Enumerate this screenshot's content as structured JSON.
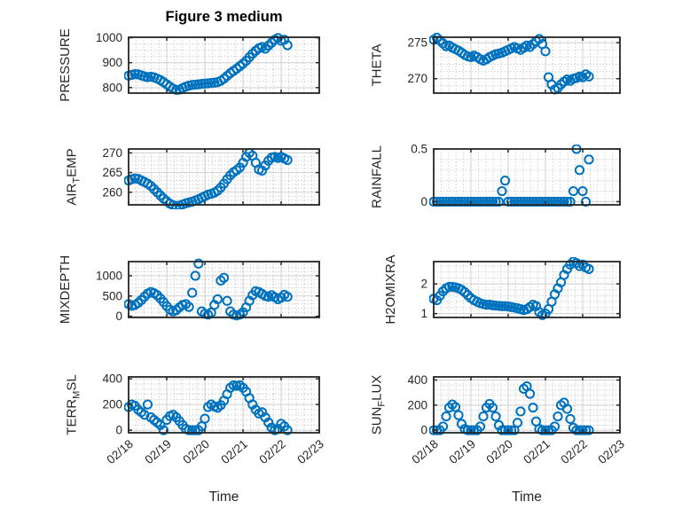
{
  "figure": {
    "title": "Figure 3 medium",
    "xlabel": "Time"
  },
  "colors": {
    "marker": "#0072BD",
    "axis": "#262626",
    "grid_major": "#cfcfcf",
    "grid_minor": "#bdbdbd",
    "background": "#ffffff",
    "title": "#000000"
  },
  "axes_meta": {
    "t_step_days": 0.0833333,
    "x_minor_step_days": 0.2,
    "xlim_days": [
      0,
      5
    ],
    "x_tick_labels": [
      "02/18",
      "02/19",
      "02/20",
      "02/21",
      "02/22",
      "02/23"
    ],
    "marker": "open-circle"
  },
  "chart_data": [
    {
      "id": "pressure",
      "name": "PRESSURE",
      "type": "scatter",
      "ylabel_parts": [
        {
          "text": "PRESSURE"
        }
      ],
      "yticks": [
        800,
        900,
        1000
      ],
      "ylim": [
        778,
        1002
      ],
      "ytick_minor_step": 25,
      "values": [
        848,
        851,
        854,
        853,
        849,
        845,
        842,
        844,
        841,
        836,
        830,
        822,
        813,
        804,
        796,
        791,
        792,
        798,
        804,
        808,
        811,
        812,
        813,
        815,
        816,
        817,
        819,
        820,
        822,
        827,
        836,
        847,
        858,
        867,
        876,
        886,
        896,
        908,
        922,
        936,
        948,
        958,
        963,
        956,
        968,
        980,
        992,
        999,
        988,
        992,
        970
      ]
    },
    {
      "id": "air-temp",
      "name": "AIR_TEMP",
      "type": "scatter",
      "ylabel_parts": [
        {
          "text": "AIR"
        },
        {
          "text": "T",
          "sub": true
        },
        {
          "text": "EMP"
        }
      ],
      "yticks": [
        260,
        265,
        270
      ],
      "ylim": [
        256.8,
        271
      ],
      "ytick_minor_step": 1,
      "values": [
        263.0,
        263.3,
        263.5,
        263.4,
        263.0,
        262.6,
        262.2,
        261.6,
        260.8,
        260.0,
        259.2,
        258.4,
        257.7,
        257.1,
        256.7,
        256.5,
        256.6,
        256.9,
        257.2,
        257.4,
        257.6,
        257.9,
        258.2,
        258.6,
        259.0,
        259.4,
        259.6,
        259.9,
        260.4,
        261.2,
        262.2,
        263.3,
        264.3,
        265.1,
        265.6,
        266.3,
        267.5,
        269.0,
        270.0,
        269.3,
        267.5,
        265.8,
        265.5,
        266.8,
        268.0,
        268.8,
        269.0,
        268.7,
        269.0,
        268.6,
        268.2
      ]
    },
    {
      "id": "mixdepth",
      "name": "MIXDEPTH",
      "type": "scatter",
      "ylabel_parts": [
        {
          "text": "MIXDEPTH"
        }
      ],
      "yticks": [
        0,
        500,
        1000
      ],
      "ylim": [
        -30,
        1350
      ],
      "ytick_minor_step": 100,
      "values": [
        300,
        260,
        280,
        330,
        400,
        480,
        560,
        600,
        570,
        520,
        440,
        350,
        250,
        160,
        120,
        150,
        220,
        280,
        300,
        230,
        580,
        1000,
        1300,
        120,
        60,
        40,
        90,
        280,
        420,
        880,
        950,
        380,
        120,
        40,
        20,
        40,
        100,
        220,
        380,
        520,
        620,
        600,
        550,
        500,
        480,
        520,
        470,
        420,
        460,
        530,
        480
      ]
    },
    {
      "id": "terr-msl",
      "name": "TERR_MSL",
      "type": "scatter",
      "ylabel_parts": [
        {
          "text": "TERR"
        },
        {
          "text": "M",
          "sub": true
        },
        {
          "text": "SL"
        }
      ],
      "yticks": [
        0,
        200,
        400
      ],
      "ylim": [
        -20,
        415
      ],
      "ytick_minor_step": 40,
      "values": [
        180,
        200,
        190,
        160,
        140,
        120,
        200,
        100,
        80,
        60,
        40,
        0,
        80,
        110,
        120,
        100,
        70,
        40,
        10,
        0,
        0,
        0,
        0,
        30,
        90,
        180,
        200,
        185,
        175,
        195,
        230,
        280,
        330,
        350,
        345,
        350,
        330,
        300,
        250,
        200,
        160,
        130,
        140,
        100,
        60,
        20,
        0,
        10,
        50,
        30,
        0
      ]
    },
    {
      "id": "theta",
      "name": "THETA",
      "type": "scatter",
      "ylabel_parts": [
        {
          "text": "THETA"
        }
      ],
      "yticks": [
        270,
        275
      ],
      "ylim": [
        268,
        275.75
      ],
      "ytick_minor_step": 1,
      "values": [
        275.4,
        275.7,
        275.3,
        274.9,
        274.5,
        274.6,
        274.3,
        274.1,
        273.9,
        273.6,
        273.3,
        273.1,
        273.0,
        273.2,
        273.0,
        272.7,
        272.5,
        272.7,
        273.0,
        273.2,
        273.4,
        273.5,
        273.6,
        273.8,
        274.0,
        274.2,
        274.4,
        274.2,
        274.0,
        274.3,
        274.6,
        274.4,
        274.8,
        275.2,
        275.5,
        274.8,
        273.8,
        270.2,
        269.2,
        268.5,
        268.7,
        269.2,
        269.6,
        269.9,
        269.7,
        270.0,
        270.1,
        270.3,
        270.2,
        270.6,
        270.3
      ]
    },
    {
      "id": "rainfall",
      "name": "RAINFALL",
      "type": "scatter",
      "ylabel_parts": [
        {
          "text": "RAINFALL"
        }
      ],
      "yticks": [
        0,
        0.5
      ],
      "ylim": [
        -0.03,
        0.5
      ],
      "ytick_minor_step": 0.1,
      "values": [
        0,
        0,
        0,
        0,
        0,
        0,
        0,
        0,
        0,
        0,
        0,
        0,
        0,
        0,
        0,
        0,
        0,
        0,
        0,
        0,
        0,
        0,
        0.1,
        0.2,
        0,
        0,
        0,
        0,
        0,
        0,
        0,
        0,
        0,
        0,
        0,
        0,
        0,
        0,
        0,
        0,
        0,
        0,
        0,
        0,
        0,
        0.1,
        0.5,
        0.3,
        0.1,
        0,
        0.4
      ]
    },
    {
      "id": "h2omixra",
      "name": "H2OMIXRA",
      "type": "scatter",
      "ylabel_parts": [
        {
          "text": "H2OMIXRA"
        }
      ],
      "yticks": [
        1,
        2
      ],
      "ylim": [
        0.87,
        2.75
      ],
      "ytick_minor_step": 0.2,
      "values": [
        1.5,
        1.45,
        1.6,
        1.75,
        1.85,
        1.9,
        1.9,
        1.88,
        1.85,
        1.8,
        1.72,
        1.62,
        1.52,
        1.45,
        1.4,
        1.35,
        1.32,
        1.3,
        1.3,
        1.28,
        1.27,
        1.26,
        1.25,
        1.25,
        1.24,
        1.22,
        1.2,
        1.18,
        1.15,
        1.12,
        1.15,
        1.22,
        1.3,
        1.25,
        1.05,
        0.95,
        1.0,
        1.15,
        1.4,
        1.65,
        1.85,
        2.05,
        2.3,
        2.5,
        2.65,
        2.75,
        2.7,
        2.6,
        2.65,
        2.55,
        2.5
      ]
    },
    {
      "id": "sun-flux",
      "name": "SUN_FLUX",
      "type": "scatter",
      "ylabel_parts": [
        {
          "text": "SUN"
        },
        {
          "text": "F",
          "sub": true
        },
        {
          "text": "LUX"
        }
      ],
      "yticks": [
        0,
        200,
        400
      ],
      "ylim": [
        -20,
        425
      ],
      "ytick_minor_step": 40,
      "values": [
        0,
        0,
        0,
        30,
        110,
        180,
        205,
        185,
        120,
        50,
        10,
        0,
        0,
        0,
        0,
        30,
        110,
        180,
        210,
        180,
        110,
        40,
        0,
        0,
        0,
        0,
        0,
        60,
        150,
        330,
        350,
        290,
        180,
        70,
        10,
        0,
        0,
        0,
        0,
        30,
        110,
        200,
        220,
        170,
        90,
        20,
        0,
        0,
        0,
        0,
        0
      ]
    }
  ]
}
